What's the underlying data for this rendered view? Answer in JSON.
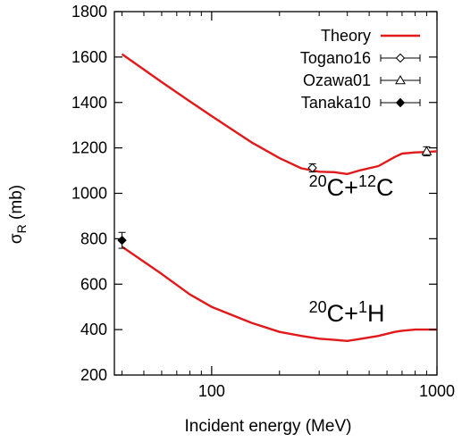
{
  "chart_data": {
    "type": "line",
    "xlabel": "Incident energy (MeV)",
    "ylabel_symbol": "σ",
    "ylabel_subscript": "R",
    "ylabel_unit": " (mb)",
    "xscale": "log",
    "xlim": [
      37,
      1000
    ],
    "ylim": [
      200,
      1800
    ],
    "x_ticks": [
      100,
      1000
    ],
    "x_tick_labels": [
      "100",
      "1000"
    ],
    "x_minor_ticks": [
      40,
      50,
      60,
      70,
      80,
      90,
      200,
      300,
      400,
      500,
      600,
      700,
      800,
      900
    ],
    "y_ticks": [
      200,
      400,
      600,
      800,
      1000,
      1200,
      1400,
      1600,
      1800
    ],
    "y_tick_labels": [
      "200",
      "400",
      "600",
      "800",
      "1000",
      "1200",
      "1400",
      "1600",
      "1800"
    ],
    "grid": false,
    "legend_position": "top-right",
    "series": [
      {
        "name": "Theory",
        "kind": "line",
        "color": "#e0191b",
        "segments": [
          {
            "x": [
              40,
              60,
              80,
              100,
              150,
              200,
              250,
              300,
              350,
              400,
              450,
              550,
              650,
              700,
              800,
              900,
              1000
            ],
            "y": [
              1613,
              1490,
              1405,
              1340,
              1225,
              1155,
              1110,
              1095,
              1093,
              1085,
              1100,
              1120,
              1160,
              1175,
              1180,
              1182,
              1185
            ]
          },
          {
            "x": [
              40,
              60,
              80,
              100,
              150,
              200,
              250,
              300,
              350,
              400,
              450,
              550,
              650,
              700,
              800,
              900,
              1000
            ],
            "y": [
              765,
              645,
              555,
              500,
              430,
              390,
              372,
              360,
              355,
              350,
              358,
              372,
              390,
              395,
              400,
              400,
              400
            ]
          }
        ]
      },
      {
        "name": "Togano16",
        "kind": "points",
        "marker": "diamond-open",
        "points": [
          {
            "x": 280,
            "y": 1112,
            "yerr": 18
          }
        ]
      },
      {
        "name": "Ozawa01",
        "kind": "points",
        "marker": "triangle-open",
        "points": [
          {
            "x": 900,
            "y": 1185,
            "yerr": 20
          }
        ]
      },
      {
        "name": "Tanaka10",
        "kind": "points",
        "marker": "diamond-filled",
        "points": [
          {
            "x": 40,
            "y": 793,
            "yerr": 35
          }
        ]
      }
    ],
    "annotations": [
      {
        "id": "c12",
        "pre": "20",
        "mid": "C+",
        "sup": "12",
        "post": "C",
        "x": 270,
        "y": 990
      },
      {
        "id": "h1",
        "pre": "20",
        "mid": "C+",
        "sup": "1",
        "post": "H",
        "x": 270,
        "y": 435
      }
    ]
  }
}
